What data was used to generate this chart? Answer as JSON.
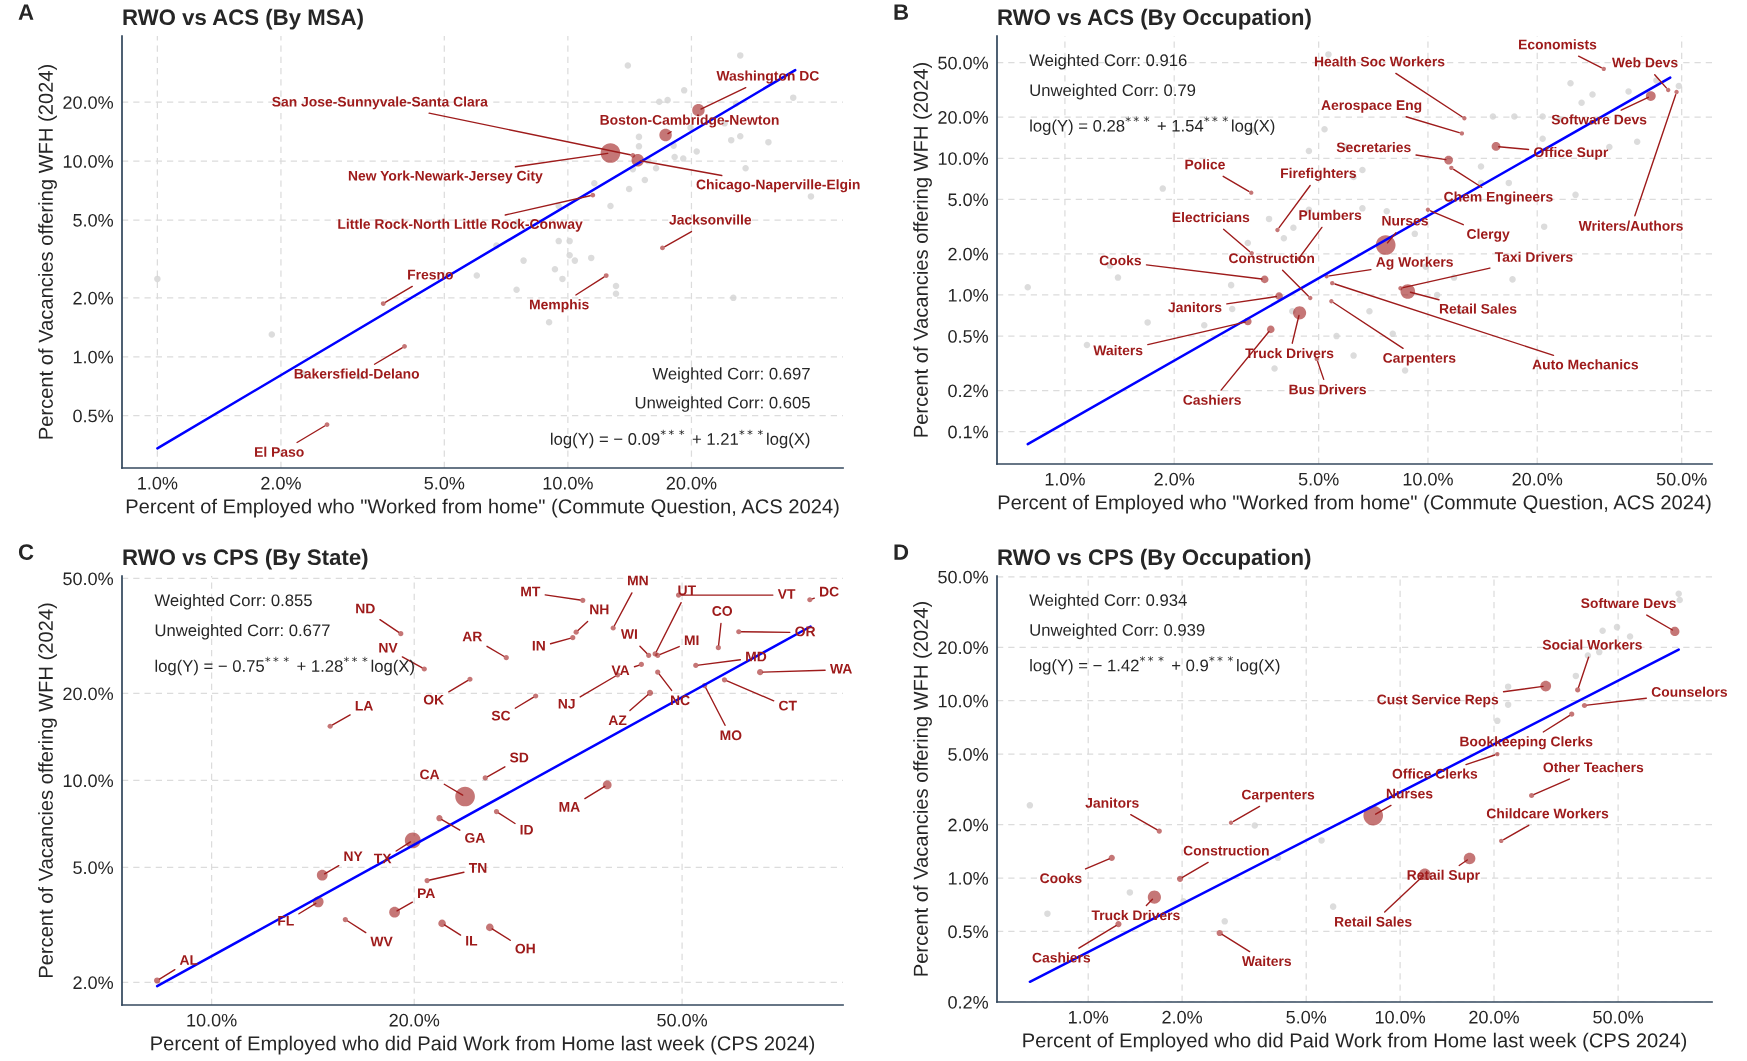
{
  "chart_data": [
    {
      "type": "scatter",
      "title": "RWO vs ACS (By MSA)",
      "xlabel": "Percent of Employed who \"Worked from home\" (Commute Question, ACS 2024)",
      "ylabel": "Percent of Vacancies offering WFH (2024)",
      "log": "xy",
      "grid": true,
      "marker": "circle",
      "xlim": [
        0.82,
        46.8
      ],
      "ylim": [
        0.27,
        43.6
      ],
      "xticks": [
        {
          "value": 1,
          "label": "1.0%"
        },
        {
          "value": 2,
          "label": "2.0%"
        },
        {
          "value": 5,
          "label": "5.0%"
        },
        {
          "value": 10,
          "label": "10.0%"
        },
        {
          "value": 20,
          "label": "20.0%"
        }
      ],
      "yticks": [
        {
          "value": 0.5,
          "label": "0.5%"
        },
        {
          "value": 1,
          "label": "1.0%"
        },
        {
          "value": 2,
          "label": "2.0%"
        },
        {
          "value": 5,
          "label": "5.0%"
        },
        {
          "value": 10,
          "label": "10.0%"
        },
        {
          "value": 20,
          "label": "20.0%"
        }
      ],
      "annotations": [
        "A",
        "Weighted Corr: 0.697",
        "Unweighted Corr: 0.605",
        "log(Y) = − 0.09$^{***}$ + 1.21$^{***}$log(X)"
      ],
      "series": [
        {
          "type": "scatter",
          "color": "#d3d3d3",
          "x": [
            26.3,
            14.0,
            19.2,
            16.7,
            17.5,
            25.7,
            35.4,
            19.9,
            24.1,
            26.3,
            25.0,
            30.8,
            14.9,
            18.1,
            20.6,
            14.9,
            15.7,
            18.2,
            19.1,
            16.4,
            14.4,
            11.6,
            14.1,
            15.4,
            39.1,
            9.5,
            12.7,
            7.5,
            6.7,
            9.5,
            10.1,
            10.1,
            10.4,
            11.4,
            7.8,
            9.3,
            13.1,
            13.1,
            9.7,
            6.0,
            7.5,
            25.3,
            9.0,
            1.9,
            2.26,
            3.1,
            1.0,
            27.1
          ],
          "values": [
            34.7,
            30.8,
            23.0,
            20.1,
            20.5,
            19.7,
            21.1,
            14.8,
            15.6,
            13.4,
            12.8,
            12.5,
            13.3,
            12.0,
            11.2,
            11.9,
            10.0,
            10.5,
            10.3,
            9.2,
            9.1,
            7.7,
            7.2,
            8.0,
            6.6,
            5.9,
            5.9,
            4.8,
            3.7,
            3.9,
            3.9,
            3.3,
            3.1,
            3.2,
            3.1,
            2.8,
            2.3,
            2.1,
            2.5,
            2.6,
            2.2,
            2.0,
            1.5,
            1.3,
            0.82,
            0.79,
            2.5,
            9.2
          ]
        },
        {
          "type": "bubble",
          "color": "#9e1b1b",
          "x": [
            20.8,
            17.3,
            14.4,
            12.7,
            14.8,
            11.5,
            17.0,
            12.4,
            3.55,
            4.0,
            2.59
          ],
          "values": [
            18.2,
            13.6,
            10.7,
            11.0,
            10.1,
            6.7,
            3.6,
            2.6,
            1.87,
            1.13,
            0.45
          ],
          "sizes": [
            0.4,
            0.4,
            0.06,
            1,
            0.4,
            0.06,
            0.06,
            0.06,
            0.06,
            0.06,
            0.06
          ],
          "value_labels": [
            "Washington DC",
            "Boston-Cambridge-Newton",
            "San Jose-Sunnyvale-Santa Clara",
            "New York-Newark-Jersey City",
            "Chicago-Naperville-Elgin",
            "Little Rock-North Little Rock-Conway",
            "Jacksonville",
            "Memphis",
            "Fresno",
            "Bakersfield-Delano",
            "El Paso"
          ]
        },
        {
          "type": "line",
          "color": "#0000ff",
          "marker": "none",
          "x": [
            1.0,
            35.8
          ],
          "values": [
            0.34,
            29.2
          ]
        }
      ]
    },
    {
      "type": "scatter",
      "title": "RWO vs ACS (By Occupation)",
      "xlabel": "Percent of Employed who \"Worked from home\" (Commute Question, ACS 2024)",
      "ylabel": "Percent of Vacancies offering WFH (2024)",
      "log": "xy",
      "grid": true,
      "marker": "circle",
      "xlim": [
        0.65,
        60.6
      ],
      "ylim": [
        0.058,
        78.4
      ],
      "xticks": [
        {
          "value": 1,
          "label": "1.0%"
        },
        {
          "value": 2,
          "label": "2.0%"
        },
        {
          "value": 5,
          "label": "5.0%"
        },
        {
          "value": 10,
          "label": "10.0%"
        },
        {
          "value": 20,
          "label": "20.0%"
        },
        {
          "value": 50,
          "label": "50.0%"
        }
      ],
      "yticks": [
        {
          "value": 0.1,
          "label": "0.1%"
        },
        {
          "value": 0.2,
          "label": "0.2%"
        },
        {
          "value": 0.5,
          "label": "0.5%"
        },
        {
          "value": 1,
          "label": "1.0%"
        },
        {
          "value": 2,
          "label": "2.0%"
        },
        {
          "value": 5,
          "label": "5.0%"
        },
        {
          "value": 10,
          "label": "10.0%"
        },
        {
          "value": 20,
          "label": "20.0%"
        },
        {
          "value": 50,
          "label": "50.0%"
        }
      ],
      "annotations": [
        "B",
        "Weighted Corr: 0.916",
        "Unweighted Corr: 0.79",
        "log(Y) = 0.28$^{***}$ + 1.54$^{***}$log(X)"
      ],
      "series": [
        {
          "type": "scatter",
          "color": "#d3d3d3",
          "x": [
            5.32,
            3.28,
            5.19,
            4.7,
            5.96,
            6.24,
            6.6,
            6.6,
            1.86,
            3.65,
            4.26,
            4.7,
            4.01,
            3.19,
            1.33,
            1.4,
            2.87,
            2.89,
            1.69,
            1.15,
            0.79,
            2.42,
            3.78,
            6.24,
            8.65,
            11.8,
            9.86,
            12.2,
            17.1,
            20.9,
            15.1,
            17.3,
            20.7,
            24.7,
            26.5,
            28.4,
            31.6,
            35.7,
            37.7,
            42.6,
            49.1,
            20.7,
            16.7,
            14.0,
            25.5,
            23.0,
            14.0,
            9.2,
            7.7,
            10.6,
            6.9,
            8.0,
            6.0,
            4.23,
            5.6
          ],
          "values": [
            57.5,
            16.0,
            16.3,
            11.3,
            12.1,
            7.3,
            8.2,
            4.3,
            6.0,
            3.6,
            3.1,
            4.2,
            2.6,
            2.4,
            1.64,
            1.34,
            1.18,
            0.79,
            0.63,
            0.43,
            1.14,
            0.6,
            0.29,
            0.36,
            0.28,
            1.34,
            1.61,
            0.76,
            1.3,
            3.16,
            20.2,
            20.2,
            20.2,
            35.4,
            25.5,
            29.3,
            12.1,
            30.8,
            13.2,
            37.1,
            33.8,
            13.9,
            6.6,
            6.6,
            5.4,
            19.3,
            8.7,
            2.8,
            4.1,
            1.0,
            0.76,
            0.52,
            null,
            0.76,
            0.5
          ]
        },
        {
          "type": "bubble",
          "color": "#9e1b1b",
          "x": [
            30.5,
            45.9,
            41.1,
            48.4,
            12.6,
            12.4,
            15.4,
            11.4,
            11.6,
            10.0,
            3.26,
            3.85,
            3.27,
            4.4,
            7.65,
            3.55,
            4.74,
            5.26,
            5.45,
            8.4,
            8.8,
            3.89,
            4.43,
            3.19,
            3.69,
            5.42,
            4.94
          ],
          "values": [
            45.1,
            31.6,
            28.5,
            30.5,
            19.6,
            15.2,
            12.2,
            9.7,
            8.5,
            4.2,
            5.6,
            2.99,
            2.02,
            1.84,
            2.32,
            1.3,
            0.95,
            1.37,
            1.22,
            1.12,
            1.06,
            0.98,
            0.74,
            0.64,
            0.56,
            0.9,
            0.34
          ],
          "sizes": [
            0.05,
            0.05,
            0.25,
            0.05,
            0.05,
            0.05,
            0.2,
            0.2,
            0.05,
            0.05,
            0.05,
            0.05,
            0.05,
            0.05,
            1,
            0.15,
            0.05,
            0.05,
            0.05,
            0.05,
            0.55,
            0.15,
            0.45,
            0.15,
            0.15,
            0.05,
            0.05
          ],
          "value_labels": [
            "Economists",
            "Web Devs",
            "Software Devs",
            "Writers/Authors",
            "Health Soc Workers",
            "Aerospace Eng",
            "Office Supr",
            "Secretaries",
            "Chem Engineers",
            "Clergy",
            "Police",
            "Firefighters",
            "Electricians",
            "Plumbers",
            "Nurses",
            "Cooks",
            "Construction",
            "Ag Workers",
            "Auto Mechanics",
            "Taxi Drivers",
            "Retail Sales",
            "Janitors",
            "Truck Drivers",
            "Waiters",
            "Cashiers",
            "Carpenters",
            "Bus Drivers"
          ]
        },
        {
          "type": "line",
          "color": "#0000ff",
          "marker": "none",
          "x": [
            0.79,
            46.5
          ],
          "values": [
            0.081,
            38.9
          ]
        }
      ]
    },
    {
      "type": "scatter",
      "title": "RWO vs CPS (By State)",
      "xlabel": "Percent of Employed who did Paid Work from Home last week (CPS 2024)",
      "ylabel": "Percent of Vacancies offering WFH (2024)",
      "log": "xy",
      "grid": true,
      "marker": "circle",
      "xlim": [
        7.36,
        86.7
      ],
      "ylim": [
        1.67,
        51
      ],
      "xticks": [
        {
          "value": 10,
          "label": "10.0%"
        },
        {
          "value": 20,
          "label": "20.0%"
        },
        {
          "value": 50,
          "label": "50.0%"
        }
      ],
      "yticks": [
        {
          "value": 2,
          "label": "2.0%"
        },
        {
          "value": 5,
          "label": "5.0%"
        },
        {
          "value": 10,
          "label": "10.0%"
        },
        {
          "value": 20,
          "label": "20.0%"
        },
        {
          "value": 50,
          "label": "50.0%"
        }
      ],
      "annotations": [
        "C",
        "Weighted Corr: 0.855",
        "Unweighted Corr: 0.677",
        "log(Y) = − 0.75$^{***}$ + 1.28$^{***}$log(X)"
      ],
      "series": [
        {
          "type": "bubble",
          "color": "#9e1b1b",
          "x": [
            35.6,
            49.4,
            77.4,
            39.5,
            34.8,
            34.4,
            19.1,
            56.6,
            60.7,
            44.6,
            46.0,
            45.6,
            27.4,
            20.7,
            43.5,
            52.4,
            65.3,
            46.0,
            40.1,
            57.8,
            24.2,
            54.0,
            44.8,
            30.3,
            15.0,
            25.5,
            23.8,
            38.7,
            26.5,
            21.8,
            19.9,
            20.9,
            14.6,
            14.4,
            18.7,
            15.8,
            22.0,
            25.9,
            8.3
          ],
          "values": [
            42.0,
            43.8,
            42.2,
            33.7,
            32.6,
            31.2,
            32.2,
            28.8,
            32.7,
            27.1,
            27.1,
            27.4,
            26.6,
            24.3,
            25.2,
            25.0,
            23.7,
            23.7,
            23.2,
            22.3,
            22.4,
            21.3,
            20.1,
            19.6,
            15.4,
            10.2,
            8.8,
            9.65,
            7.8,
            7.4,
            6.2,
            4.5,
            4.7,
            3.8,
            3.5,
            3.3,
            3.2,
            3.1,
            2.03
          ],
          "sizes": [
            0.07,
            0.07,
            0.07,
            0.07,
            0.07,
            0.07,
            0.07,
            0.07,
            0.07,
            0.07,
            0.07,
            0.07,
            0.07,
            0.07,
            0.07,
            0.07,
            0.1,
            0.07,
            0.07,
            0.07,
            0.07,
            0.07,
            0.1,
            0.07,
            0.07,
            0.07,
            1,
            0.2,
            0.07,
            0.1,
            0.65,
            0.07,
            0.3,
            0.3,
            0.3,
            0.07,
            0.15,
            0.15,
            0.1
          ],
          "value_labels": [
            "MT",
            "VT",
            "DC",
            "MN",
            "NH",
            "IN",
            "ND",
            "CO",
            "OR",
            "WI",
            "MI",
            "UT",
            "AR",
            "NV",
            "VA",
            "MD",
            "WA",
            "NC",
            "NJ",
            "CT",
            "OK",
            "MO",
            "AZ",
            "SC",
            "LA",
            "SD",
            "CA",
            "MA",
            "ID",
            "GA",
            "TX",
            "TN",
            "NY",
            "FL",
            "PA",
            "WV",
            "IL",
            "OH",
            "AL"
          ]
        },
        {
          "type": "line",
          "color": "#0000ff",
          "marker": "none",
          "x": [
            8.3,
            77.6
          ],
          "values": [
            1.94,
            34.1
          ]
        }
      ]
    },
    {
      "type": "scatter",
      "title": "RWO vs CPS (By Occupation)",
      "xlabel": "Percent of Employed who did Paid Work from Home last week (CPS 2024)",
      "ylabel": "Percent of Vacancies offering WFH (2024)",
      "log": "xy",
      "grid": true,
      "marker": "circle",
      "xlim": [
        0.51,
        100
      ],
      "ylim": [
        0.2,
        50.5
      ],
      "xticks": [
        {
          "value": 1,
          "label": "1.0%"
        },
        {
          "value": 2,
          "label": "2.0%"
        },
        {
          "value": 5,
          "label": "5.0%"
        },
        {
          "value": 10,
          "label": "10.0%"
        },
        {
          "value": 20,
          "label": "20.0%"
        },
        {
          "value": 50,
          "label": "50.0%"
        }
      ],
      "yticks": [
        {
          "value": 0.2,
          "label": "0.2%"
        },
        {
          "value": 0.5,
          "label": "0.5%"
        },
        {
          "value": 1,
          "label": "1.0%"
        },
        {
          "value": 2,
          "label": "2.0%"
        },
        {
          "value": 5,
          "label": "5.0%"
        },
        {
          "value": 10,
          "label": "10.0%"
        },
        {
          "value": 20,
          "label": "20.0%"
        },
        {
          "value": 50,
          "label": "50.0%"
        }
      ],
      "annotations": [
        "D",
        "Weighted Corr: 0.934",
        "Unweighted Corr: 0.939",
        "log(Y) = − 1.42$^{***}$ + 0.9$^{***}$log(X)"
      ],
      "series": [
        {
          "type": "scatter",
          "color": "#d3d3d3",
          "x": [
            78.2,
            78.8,
            44.6,
            49.6,
            54.6,
            40.0,
            43.5,
            36.6,
            22.2,
            22.2,
            20.5,
            3.42,
            5.6,
            4.06,
            1.36,
            2.02,
            0.74,
            6.1,
            2.74,
            0.65
          ],
          "values": [
            40.1,
            37.0,
            24.8,
            26.0,
            23.0,
            18.0,
            18.8,
            13.8,
            12.0,
            9.5,
            7.7,
            1.98,
            1.63,
            1.3,
            0.83,
            0.74,
            0.63,
            0.69,
            0.57,
            2.57
          ]
        },
        {
          "type": "bubble",
          "color": "#9e1b1b",
          "x": [
            76.0,
            37.1,
            29.3,
            39.0,
            35.5,
            20.5,
            26.4,
            8.2,
            21.1,
            16.7,
            12.0,
            1.69,
            2.87,
            1.19,
            1.97,
            1.63,
            1.25,
            2.64
          ],
          "values": [
            24.6,
            11.5,
            12.1,
            9.4,
            8.4,
            5.0,
            2.92,
            2.25,
            1.62,
            1.29,
            1.05,
            1.84,
            2.05,
            1.3,
            0.99,
            0.78,
            0.55,
            0.49
          ],
          "sizes": [
            0.22,
            0.07,
            0.3,
            0.07,
            0.07,
            0.05,
            0.07,
            1,
            0.05,
            0.35,
            0.35,
            0.07,
            0.05,
            0.1,
            0.1,
            0.45,
            0.1,
            0.1
          ],
          "value_labels": [
            "Software Devs",
            "Social Workers",
            "Cust Service Reps",
            "Counselors",
            "Bookkeeping Clerks",
            "Office Clerks",
            "Other Teachers",
            "Nurses",
            "Childcare Workers",
            "Retail Supr",
            "Retail Sales",
            "Janitors",
            "Carpenters",
            "Cooks",
            "Construction",
            "Truck Drivers",
            "Cashiers",
            "Waiters"
          ]
        },
        {
          "type": "line",
          "color": "#0000ff",
          "marker": "none",
          "x": [
            0.65,
            78.2
          ],
          "values": [
            0.26,
            19.4
          ]
        }
      ]
    }
  ]
}
